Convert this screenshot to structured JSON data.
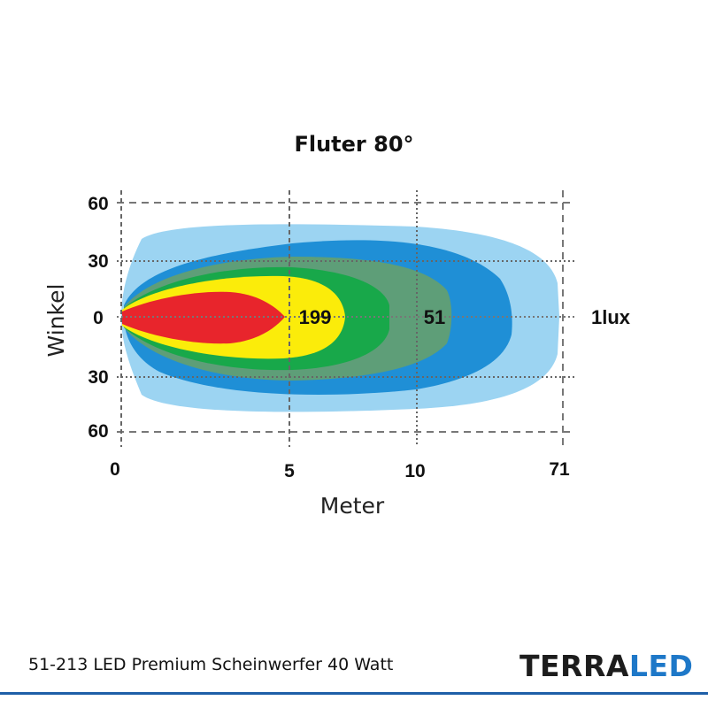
{
  "chart_data": {
    "type": "isolux contour",
    "title": "Fluter 80°",
    "xlabel": "Meter",
    "ylabel": "Winkel",
    "x_ticks": [
      "0",
      "5",
      "10",
      "71"
    ],
    "y_ticks": [
      "60",
      "30",
      "0",
      "30",
      "60"
    ],
    "grid": true,
    "series": [
      {
        "name": "1lux",
        "color": "#9cd4f2",
        "reach_m": 71
      },
      {
        "color": "#1f8fd6"
      },
      {
        "color": "#5e9e78"
      },
      {
        "name": "51",
        "color": "#18a84a",
        "reach_m": 10
      },
      {
        "name": "199",
        "color": "#fbec0a",
        "reach_m": 5
      },
      {
        "color": "#e8252c"
      }
    ],
    "labels": [
      "199",
      "51",
      "1lux"
    ]
  },
  "footer": {
    "product": "51-213 LED Premium Scheinwerfer 40 Watt",
    "logo_part1": "TERRA",
    "logo_part2": "LED"
  },
  "colors": {
    "logo_dark": "#1d1d1d",
    "logo_blue": "#1e78c8",
    "footer_line": "#1e5fa8"
  }
}
